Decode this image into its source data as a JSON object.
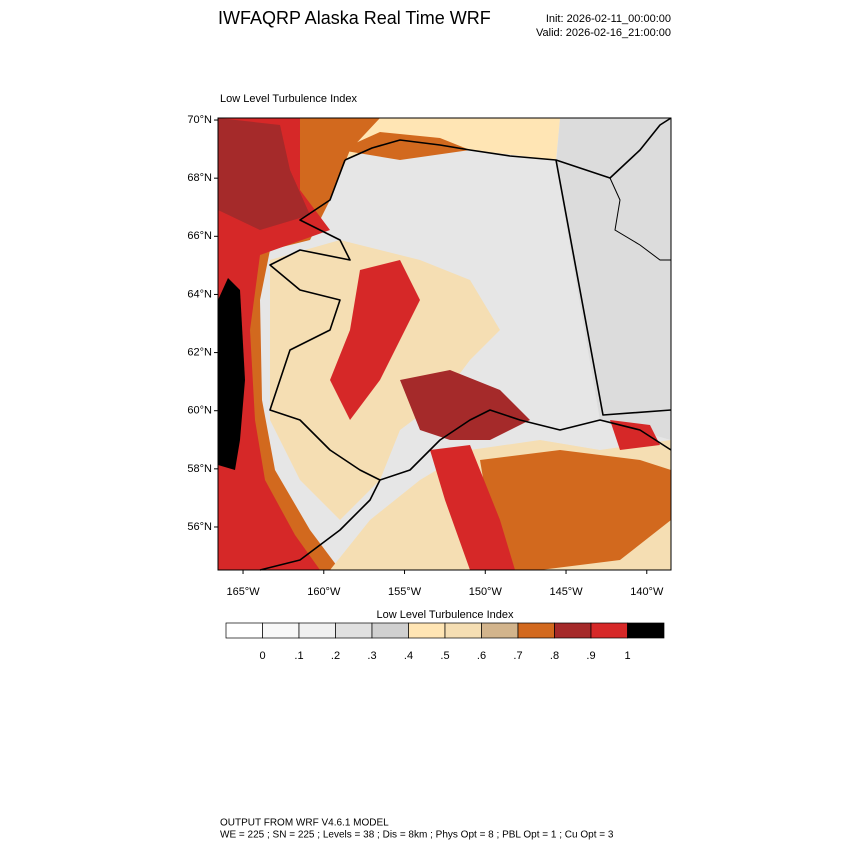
{
  "header": {
    "title": "IWFAQRP Alaska Real Time WRF",
    "init": "Init: 2026-02-11_00:00:00",
    "valid": "Valid: 2026-02-16_21:00:00"
  },
  "map": {
    "title": "Low Level Turbulence Index",
    "latlim": [
      54.52,
      70.07
    ],
    "lonlim": [
      -166.55,
      -138.5
    ],
    "lat_ticks": [
      {
        "value": 70,
        "label": "70°N"
      },
      {
        "value": 68,
        "label": "68°N"
      },
      {
        "value": 66,
        "label": "66°N"
      },
      {
        "value": 64,
        "label": "64°N"
      },
      {
        "value": 62,
        "label": "62°N"
      },
      {
        "value": 60,
        "label": "60°N"
      },
      {
        "value": 58,
        "label": "58°N"
      },
      {
        "value": 56,
        "label": "56°N"
      }
    ],
    "lon_ticks": [
      {
        "value": -165,
        "label": "165°W"
      },
      {
        "value": -160,
        "label": "160°W"
      },
      {
        "value": -155,
        "label": "155°W"
      },
      {
        "value": -150,
        "label": "150°W"
      },
      {
        "value": -145,
        "label": "145°W"
      },
      {
        "value": -140,
        "label": "140°W"
      }
    ]
  },
  "colorbar": {
    "title": "Low Level Turbulence Index",
    "colors": [
      "#ffffff",
      "#f8f8f8",
      "#f0f0f0",
      "#e0e0e0",
      "#d0d0d0",
      "#ffe5b4",
      "#f5deb3",
      "#d2b48c",
      "#d2691e",
      "#a52a2a",
      "#d62828",
      "#000000"
    ],
    "ticks": [
      {
        "value": 0,
        "label": "0"
      },
      {
        "value": 0.1,
        "label": ".1"
      },
      {
        "value": 0.2,
        "label": ".2"
      },
      {
        "value": 0.3,
        "label": ".3"
      },
      {
        "value": 0.4,
        "label": ".4"
      },
      {
        "value": 0.5,
        "label": ".5"
      },
      {
        "value": 0.6,
        "label": ".6"
      },
      {
        "value": 0.7,
        "label": ".7"
      },
      {
        "value": 0.8,
        "label": ".8"
      },
      {
        "value": 0.9,
        "label": ".9"
      },
      {
        "value": 1,
        "label": "1"
      }
    ]
  },
  "footer": {
    "line1": "OUTPUT FROM WRF V4.6.1 MODEL",
    "line2": "WE = 225 ; SN = 225 ; Levels = 38 ; Dis = 8km ; Phys Opt = 8 ; PBL Opt = 1 ; Cu Opt = 3"
  }
}
